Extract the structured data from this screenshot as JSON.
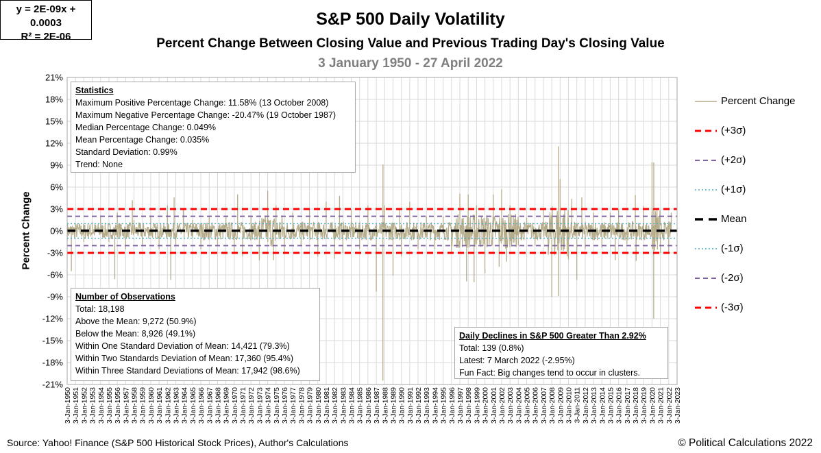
{
  "titles": {
    "main": "S&P 500 Daily Volatility",
    "subtitle": "Percent Change Between Closing Value and Previous Trading Day's Closing Value",
    "date_range": "3 January 1950 - 27 April 2022"
  },
  "statistics": {
    "heading": "Statistics",
    "lines": [
      "Maximum Positive Percentage Change: 11.58% (13 October 2008)",
      "Maximum Negative Percentage Change: -20.47% (19 October 1987)",
      "Median Percentage Change: 0.049%",
      "Mean Percentage Change: 0.035%",
      "Standard Deviation: 0.99%",
      "Trend: None"
    ]
  },
  "observations": {
    "heading": "Number of Observations",
    "lines": [
      "Total: 18,198",
      "Above the Mean: 9,272  (50.9%)",
      "Below the Mean: 8,926  (49.1%)",
      "Within One Standard Deviation of Mean: 14,421  (79.3%)",
      "Within Two Standards Deviation of Mean: 17,360  (95.4%)",
      "Within Three Standard Deviations of Mean: 17,942  (98.6%)"
    ]
  },
  "declines": {
    "heading": "Daily Declines in S&P 500 Greater Than 2.92%",
    "lines": [
      "Total: 139  (0.8%)",
      "Latest: 7 March 2022  (-2.95%)",
      "Fun Fact:  Big changes tend to occur in clusters."
    ]
  },
  "trendline": {
    "equation": "y = 2E-09x + 0.0003",
    "r2": "R² = 2E-06"
  },
  "footer": {
    "source": "Source: Yahoo! Finance (S&P 500 Historical Stock Prices), Author's Calculations",
    "copyright": "© Political Calculations 2022"
  },
  "colors": {
    "series": "#b5ac8a",
    "sigma3": "#ff0000",
    "sigma2": "#8064a2",
    "sigma1": "#4bacc6",
    "mean": "#000000",
    "grid": "#d9d9d9"
  },
  "chart_data": {
    "type": "line",
    "title": "S&P 500 Daily Volatility",
    "xlabel": "",
    "ylabel": "Percent Change",
    "ylim": [
      -21,
      21
    ],
    "yticks": [
      21,
      18,
      15,
      12,
      9,
      6,
      3,
      0,
      -3,
      -6,
      -9,
      -12,
      -15,
      -18,
      -21
    ],
    "ytick_labels": [
      "21%",
      "18%",
      "15%",
      "12%",
      "9%",
      "6%",
      "3%",
      "0%",
      "-3%",
      "-6%",
      "-9%",
      "-12%",
      "-15%",
      "-18%",
      "-21%"
    ],
    "x_start_year": 1950,
    "x_end_year": 2023,
    "x_tick_prefix": "3-Jan-",
    "legend": [
      "Percent Change",
      "(+3σ)",
      "(+2σ)",
      "(+1σ)",
      "Mean",
      "(-1σ)",
      "(-2σ)",
      "(-3σ)"
    ],
    "reference_lines": [
      {
        "name": "(+3σ)",
        "value": 3.0
      },
      {
        "name": "(+2σ)",
        "value": 2.0
      },
      {
        "name": "(+1σ)",
        "value": 1.0
      },
      {
        "name": "Mean",
        "value": 0.035
      },
      {
        "name": "(-1σ)",
        "value": -1.0
      },
      {
        "name": "(-2σ)",
        "value": -2.0
      },
      {
        "name": "(-3σ)",
        "value": -3.0
      }
    ],
    "series": [
      {
        "name": "Percent Change",
        "x": [
          1950.0,
          1950.5,
          1951.0,
          1952.0,
          1953.0,
          1954.0,
          1955.0,
          1955.7,
          1956.0,
          1957.0,
          1957.8,
          1958.0,
          1959.0,
          1960.0,
          1961.0,
          1962.0,
          1962.4,
          1962.8,
          1963.0,
          1963.9,
          1964.0,
          1965.0,
          1966.0,
          1967.0,
          1968.0,
          1969.0,
          1970.0,
          1970.4,
          1971.0,
          1972.0,
          1973.0,
          1974.0,
          1974.7,
          1975.0,
          1976.0,
          1977.0,
          1978.0,
          1979.0,
          1980.0,
          1981.0,
          1982.0,
          1982.6,
          1983.0,
          1984.0,
          1985.0,
          1986.0,
          1987.0,
          1987.79,
          1987.8,
          1988.0,
          1989.0,
          1989.8,
          1990.0,
          1991.0,
          1992.0,
          1993.0,
          1994.0,
          1995.0,
          1996.0,
          1997.0,
          1997.8,
          1998.0,
          1998.7,
          1999.0,
          2000.0,
          2001.0,
          2001.7,
          2002.0,
          2002.6,
          2003.0,
          2004.0,
          2005.0,
          2006.0,
          2007.0,
          2008.0,
          2008.78,
          2008.8,
          2009.0,
          2010.0,
          2010.4,
          2011.0,
          2011.6,
          2012.0,
          2013.0,
          2014.0,
          2015.0,
          2015.6,
          2016.0,
          2017.0,
          2018.0,
          2018.1,
          2019.0,
          2020.0,
          2020.2,
          2020.21,
          2021.0,
          2022.0,
          2022.3
        ],
        "y": [
          0.3,
          -5.5,
          1.0,
          -1.5,
          1.2,
          2.0,
          -1.5,
          -6.6,
          2.5,
          -2.5,
          4.2,
          1.5,
          -2.0,
          2.0,
          -2.5,
          3.5,
          -6.7,
          4.6,
          -2.0,
          3.0,
          -1.0,
          1.5,
          -2.5,
          2.0,
          -2.0,
          2.0,
          -3.0,
          5.0,
          -3.5,
          2.0,
          -4.0,
          5.5,
          -4.0,
          3.5,
          -3.0,
          2.5,
          -2.0,
          3.0,
          -3.5,
          4.0,
          -3.8,
          4.8,
          -3.0,
          3.0,
          -2.5,
          3.5,
          -8.3,
          -20.47,
          9.1,
          3.5,
          -6.1,
          3.0,
          -3.5,
          4.0,
          -2.5,
          2.0,
          -2.5,
          2.0,
          -3.0,
          5.1,
          -6.9,
          5.0,
          -7.0,
          3.5,
          -5.8,
          5.0,
          -4.9,
          5.7,
          -4.2,
          3.5,
          -2.0,
          1.8,
          -2.0,
          3.0,
          -9.0,
          11.58,
          -8.9,
          7.1,
          -3.9,
          4.4,
          -6.7,
          4.6,
          -2.5,
          2.5,
          -2.3,
          2.5,
          -4.0,
          3.0,
          -1.8,
          4.9,
          -4.1,
          3.4,
          9.4,
          -12.0,
          9.38,
          -3.0,
          -3.0,
          2.5
        ]
      }
    ]
  }
}
